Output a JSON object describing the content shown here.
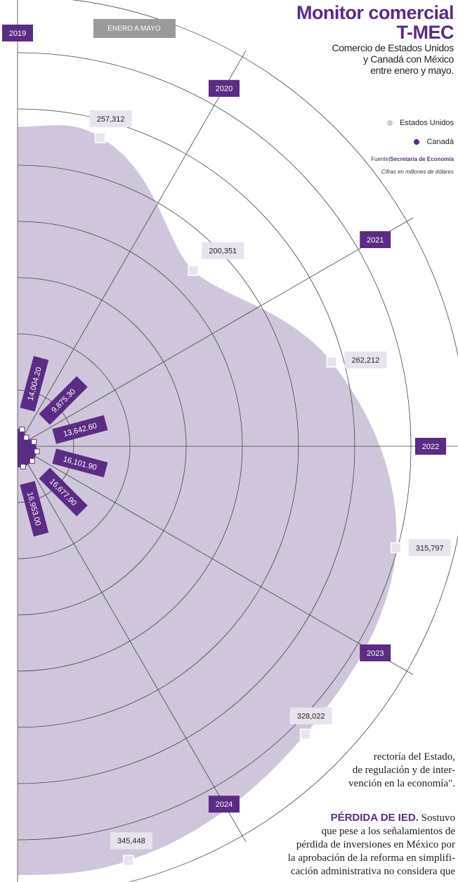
{
  "chart_data": {
    "type": "polar_area",
    "title": "Monitor comercial",
    "title_line2": "T-MEC",
    "subtitle": [
      "Comercio de Estados Unidos",
      "y Canadá con México",
      "entre enero y mayo."
    ],
    "badge": "ENERO A MAYO",
    "source_label": "Fuente",
    "source": "Secretaría de Economía",
    "note": "Cifras en millones de dólares",
    "categories": [
      "2019",
      "2020",
      "2021",
      "2022",
      "2023",
      "2024"
    ],
    "rlim": [
      0,
      355000
    ],
    "series": [
      {
        "name": "Estados Unidos",
        "color": "#cfc6dc",
        "values": [
          257312,
          200351,
          262212,
          315797,
          328022,
          345448
        ],
        "value_labels": [
          "257,312",
          "200,351",
          "262,212",
          "315,797",
          "328,022",
          "345,448"
        ]
      },
      {
        "name": "Canadá",
        "color": "#5b2c83",
        "values": [
          14004.2,
          9875.3,
          13642.6,
          16101.9,
          16677.9,
          16953.0
        ],
        "value_labels": [
          "14,004.20",
          "9,875.30",
          "13,642.60",
          "16,101.90",
          "16,677.90",
          "16,953.00"
        ]
      }
    ]
  },
  "article": {
    "paragraph1": [
      "rectoría del Estado,",
      "de regulación y de inter-",
      "vención en la economía\"."
    ],
    "heading": "PÉRDIDA DE IED.",
    "paragraph2": [
      "Sostuvo",
      "que pese a los señalamientos de",
      "pérdida de inversiones en México por",
      "la aprobación de la reforma en simplifi-",
      "cación administrativa no considera que"
    ]
  }
}
